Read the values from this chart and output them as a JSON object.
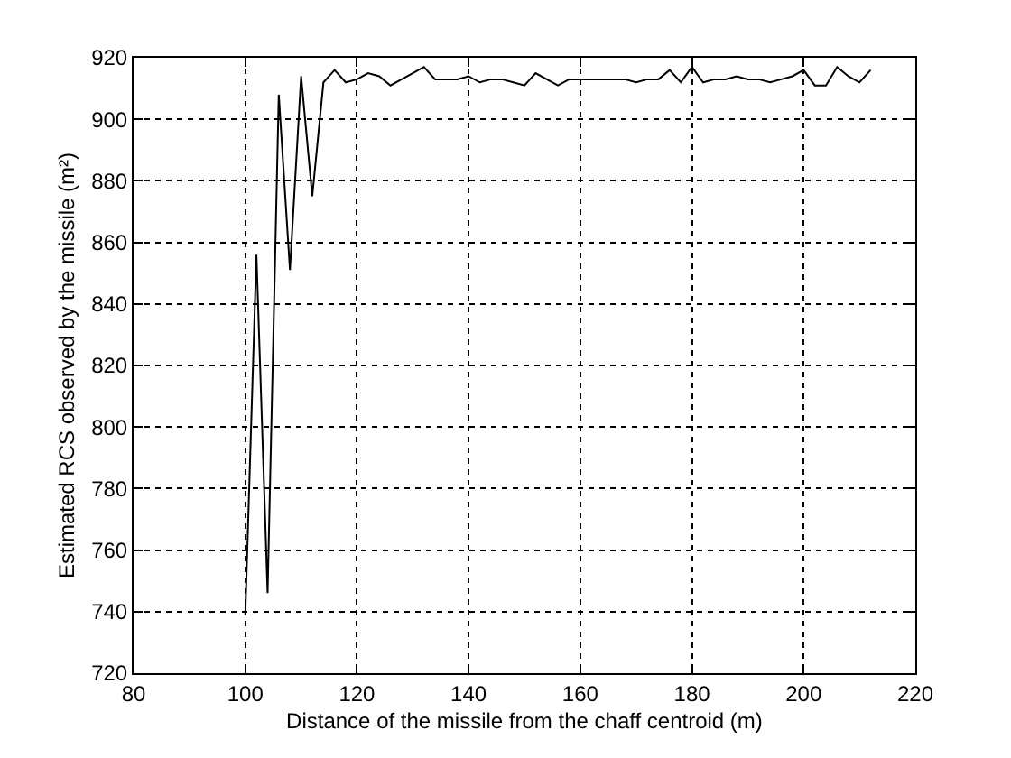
{
  "chart_data": {
    "type": "line",
    "xlabel": "Distance of the missile from the chaff centroid (m)",
    "ylabel": "Estimated RCS observed by the missile (m²)",
    "x": [
      100,
      102,
      104,
      106,
      108,
      110,
      112,
      114,
      116,
      118,
      120,
      122,
      124,
      126,
      128,
      130,
      132,
      134,
      136,
      138,
      140,
      142,
      144,
      146,
      148,
      150,
      152,
      154,
      156,
      158,
      160,
      162,
      164,
      166,
      168,
      170,
      172,
      174,
      176,
      178,
      180,
      182,
      184,
      186,
      188,
      190,
      192,
      194,
      196,
      198,
      200,
      202,
      204,
      206,
      208,
      210,
      212
    ],
    "series": [
      {
        "color": "#000000",
        "values": [
          739,
          856,
          746,
          908,
          851,
          914,
          875,
          912,
          916,
          912,
          913,
          915,
          914,
          911,
          913,
          915,
          917,
          913,
          913,
          913,
          914,
          912,
          913,
          913,
          912,
          911,
          915,
          913,
          911,
          913,
          913,
          913,
          913,
          913,
          913,
          912,
          913,
          913,
          916,
          912,
          917,
          912,
          913,
          913,
          914,
          913,
          913,
          912,
          913,
          914,
          916,
          911,
          911,
          917,
          914,
          912,
          916
        ]
      }
    ],
    "xlim": [
      80,
      220
    ],
    "ylim": [
      720,
      920
    ],
    "xticks": [
      80,
      100,
      120,
      140,
      160,
      180,
      200,
      220
    ],
    "yticks": [
      720,
      740,
      760,
      780,
      800,
      820,
      840,
      860,
      880,
      900,
      920
    ],
    "grid": true,
    "line_style": "solid"
  }
}
